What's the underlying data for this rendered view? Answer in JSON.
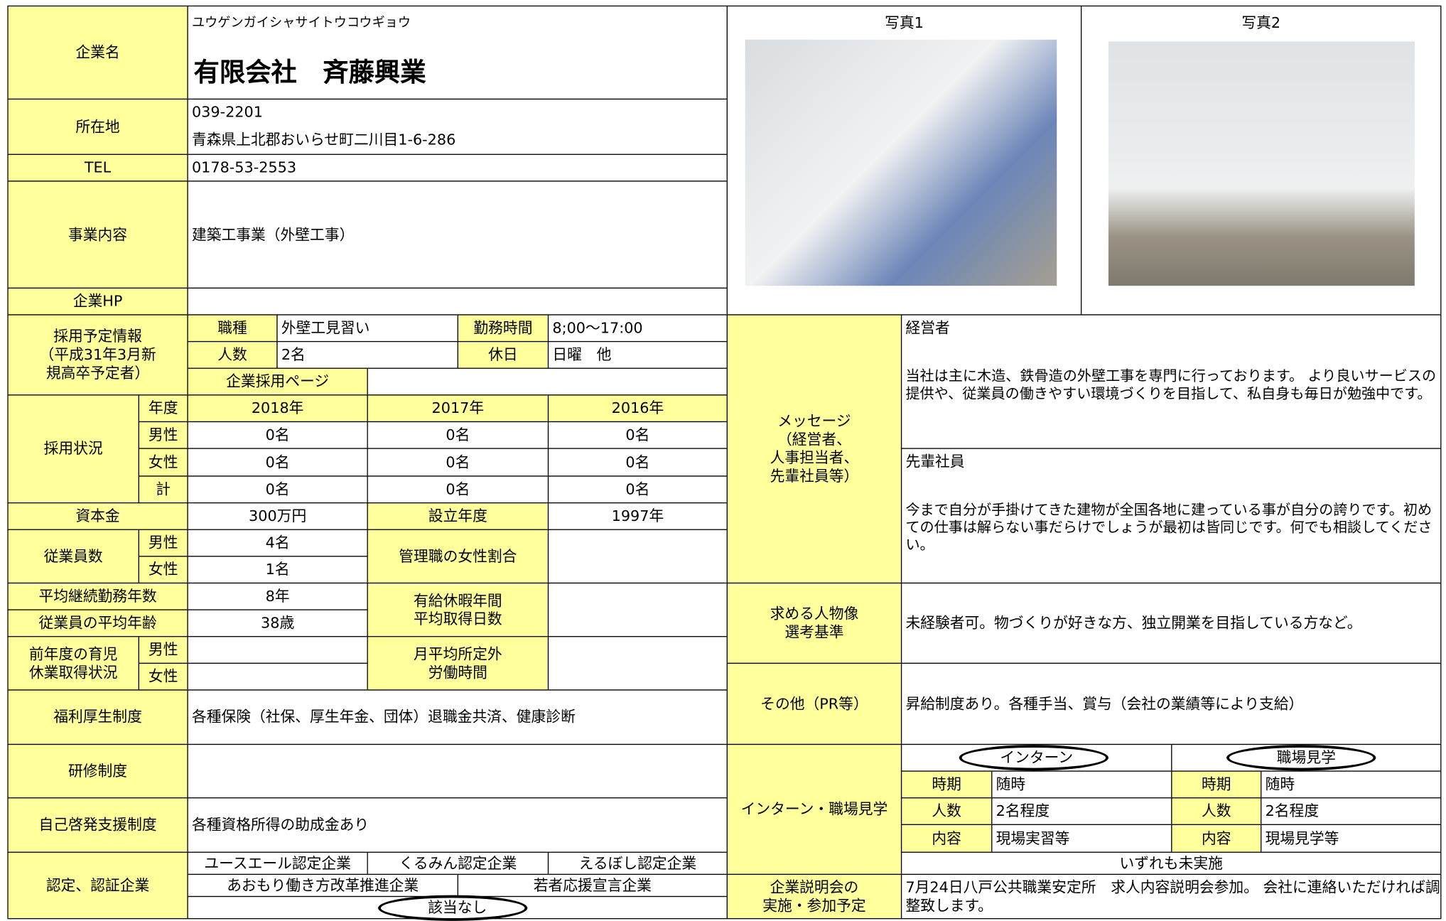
{
  "company": {
    "name_label": "企業名",
    "kana": "ユウゲンガイシャサイトウコウギョウ",
    "name": "有限会社　斉藤興業",
    "address_label": "所在地",
    "postal": "039-2201",
    "address": "青森県上北郡おいらせ町二川目1-6-286",
    "tel_label": "TEL",
    "tel": "0178-53-2553",
    "business_label": "事業内容",
    "business": "建築工事業（外壁工事）",
    "hp_label": "企業HP"
  },
  "photos": [
    {
      "label": "写真1"
    },
    {
      "label": "写真2"
    }
  ],
  "recruitment_plan": {
    "label": "採用予定情報\n（平成31年3月新\n規高卒予定者）",
    "job_label": "職種",
    "job": "外壁工見習い",
    "hours_label": "勤務時間",
    "hours": "8;00～17:00",
    "count_label": "人数",
    "count": "2名",
    "holiday_label": "休日",
    "holiday": "日曜　他",
    "page_label": "企業採用ページ"
  },
  "hiring_status": {
    "label": "採用状況",
    "header": [
      "年度",
      "2018年",
      "2017年",
      "2016年"
    ],
    "rows": [
      [
        "男性",
        "0名",
        "0名",
        "0名"
      ],
      [
        "女性",
        "0名",
        "0名",
        "0名"
      ],
      [
        "計",
        "0名",
        "0名",
        "0名"
      ]
    ]
  },
  "capital": {
    "label": "資本金",
    "value": "300万円",
    "founded_label": "設立年度",
    "founded": "1997年"
  },
  "employees": {
    "label": "従業員数",
    "male_label": "男性",
    "male": "4名",
    "female_label": "女性",
    "female": "1名",
    "female_manager_label": "管理職の女性割合"
  },
  "tenure": {
    "label": "平均継続勤務年数",
    "value": "8年"
  },
  "age": {
    "label": "従業員の平均年齢",
    "value": "38歳"
  },
  "paid_leave_label": "有給休暇年間\n平均取得日数",
  "childcare": {
    "label": "前年度の育児\n休業取得状況",
    "male_label": "男性",
    "female_label": "女性"
  },
  "overtime_label": "月平均所定外\n労働時間",
  "welfare": {
    "label": "福利厚生制度",
    "value": "各種保険（社保、厚生年金、団体）退職金共済、健康診断"
  },
  "training": {
    "label": "研修制度"
  },
  "self_dev": {
    "label": "自己啓発支援制度",
    "value": "各種資格所得の助成金あり"
  },
  "certification": {
    "label": "認定、認証企業",
    "items": [
      "ユースエール認定企業",
      "くるみん認定企業",
      "えるぼし認定企業",
      "あおもり働き方改革推進企業",
      "若者応援宣言企業",
      "該当なし"
    ]
  },
  "message": {
    "label": "メッセージ\n（経営者、\n人事担当者、\n先輩社員等）",
    "ceo_label": "経営者",
    "ceo": "当社は主に木造、鉄骨造の外壁工事を専門に行っております。 より良いサービスの提供や、従業員の働きやすい環境づくりを目指して、私自身も毎日が勉強中です。",
    "senior_label": "先輩社員",
    "senior": "今まで自分が手掛けてきた建物が全国各地に建っている事が自分の誇りです。初めての仕事は解らない事だらけでしょうが最初は皆同じです。何でも相談してください。"
  },
  "ideal": {
    "label": "求める人物像\n選考基準",
    "value": "未経験者可。物づくりが好きな方、独立開業を目指している方など。"
  },
  "other": {
    "label": "その他（PR等）",
    "value": "昇給制度あり。各種手当、賞与（会社の業績等により支給）"
  },
  "internship": {
    "label": "インターン・職場見学",
    "intern": {
      "label": "インターン",
      "period_label": "時期",
      "period": "随時",
      "count_label": "人数",
      "count": "2名程度",
      "content_label": "内容",
      "content": "現場実習等"
    },
    "visit": {
      "label": "職場見学",
      "period_label": "時期",
      "period": "随時",
      "count_label": "人数",
      "count": "2名程度",
      "content_label": "内容",
      "content": "現場見学等"
    },
    "note": "いずれも未実施"
  },
  "briefing": {
    "label": "企業説明会の\n実施・参加予定",
    "value": "7月24日八戸公共職業安定所　求人内容説明会参加。 会社に連絡いただければ調整致します。"
  }
}
